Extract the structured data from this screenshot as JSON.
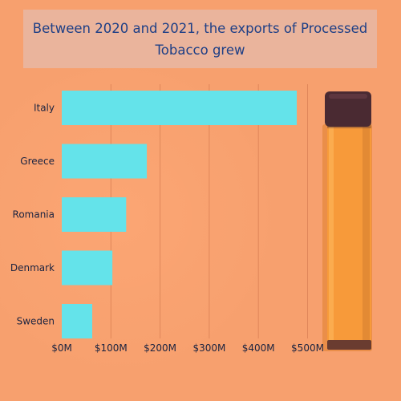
{
  "colors": {
    "background": "#f7a06e",
    "title_box": "#eab49c",
    "title_text": "#1e3f86",
    "bar": "#64e3ea",
    "gridline": "#e0875a",
    "device_body": "#f79a3a",
    "device_cap": "#4a2a32"
  },
  "chart_data": {
    "type": "bar",
    "orientation": "horizontal",
    "title": "Between 2020 and 2021, the exports of Processed Tobacco grew",
    "xlabel": "",
    "ylabel": "",
    "categories": [
      "Italy",
      "Greece",
      "Romania",
      "Denmark",
      "Sweden"
    ],
    "values": [
      478,
      173,
      131,
      103,
      62
    ],
    "xlim": [
      0,
      500
    ],
    "ticks": [
      0,
      100,
      200,
      300,
      400,
      500
    ],
    "tick_labels": [
      "$0M",
      "$100M",
      "$200M",
      "$300M",
      "$400M",
      "$500M"
    ],
    "grid": true,
    "legend": "none"
  },
  "decor": {
    "device_icon": "vape-pen-icon"
  }
}
